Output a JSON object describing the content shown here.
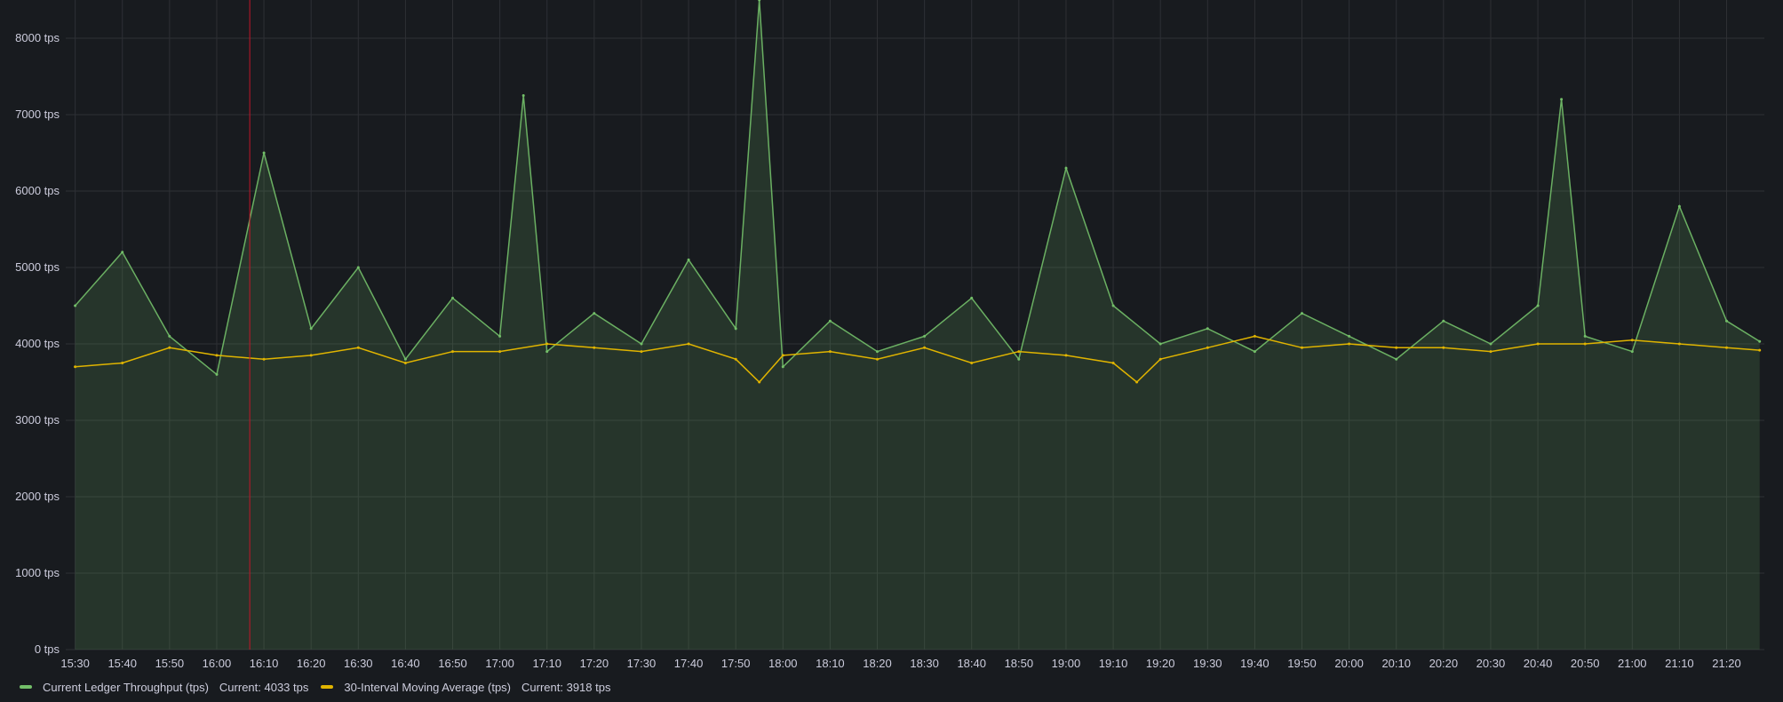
{
  "colors": {
    "background": "#181b1f",
    "grid": "#2e3035",
    "throughput": "#73bf69",
    "moving_average": "#e0b400",
    "annotation": "#c4162a"
  },
  "legend": [
    {
      "name": "Current Ledger Throughput (tps)",
      "current": "Current: 4033 tps",
      "color": "#73bf69"
    },
    {
      "name": "30-Interval Moving Average (tps)",
      "current": "Current: 3918 tps",
      "color": "#e0b400"
    }
  ],
  "chart_data": {
    "type": "line",
    "title": "",
    "xlabel": "",
    "ylabel": "",
    "ylim": [
      0,
      8500
    ],
    "y_ticks": [
      "0 tps",
      "1000 tps",
      "2000 tps",
      "3000 tps",
      "4000 tps",
      "5000 tps",
      "6000 tps",
      "7000 tps",
      "8000 tps"
    ],
    "y_tick_values": [
      0,
      1000,
      2000,
      3000,
      4000,
      5000,
      6000,
      7000,
      8000
    ],
    "x_ticks": [
      "15:30",
      "15:40",
      "15:50",
      "16:00",
      "16:10",
      "16:20",
      "16:30",
      "16:40",
      "16:50",
      "17:00",
      "17:10",
      "17:20",
      "17:30",
      "17:40",
      "17:50",
      "18:00",
      "18:10",
      "18:20",
      "18:30",
      "18:40",
      "18:50",
      "19:00",
      "19:10",
      "19:20",
      "19:30",
      "19:40",
      "19:50",
      "20:00",
      "20:10",
      "20:20",
      "20:30",
      "20:40",
      "20:50",
      "21:00",
      "21:10",
      "21:20"
    ],
    "x_range": [
      "15:28",
      "21:28"
    ],
    "grid": true,
    "legend_position": "bottom-left",
    "annotation_time": "16:07",
    "series": [
      {
        "name": "Current Ledger Throughput (tps)",
        "x": [
          "15:30",
          "15:40",
          "15:50",
          "16:00",
          "16:10",
          "16:20",
          "16:30",
          "16:40",
          "16:50",
          "17:00",
          "17:05",
          "17:10",
          "17:20",
          "17:30",
          "17:40",
          "17:50",
          "17:55",
          "18:00",
          "18:10",
          "18:20",
          "18:30",
          "18:40",
          "18:50",
          "19:00",
          "19:10",
          "19:20",
          "19:30",
          "19:40",
          "19:50",
          "20:00",
          "20:10",
          "20:20",
          "20:30",
          "20:40",
          "20:45",
          "20:50",
          "21:00",
          "21:10",
          "21:20",
          "21:27"
        ],
        "values": [
          4500,
          5200,
          4100,
          3600,
          6500,
          4200,
          5000,
          3800,
          4600,
          4100,
          7250,
          3900,
          4400,
          4000,
          5100,
          4200,
          8500,
          3700,
          4300,
          3900,
          4100,
          4600,
          3800,
          6300,
          4500,
          4000,
          4200,
          3900,
          4400,
          4100,
          3800,
          4300,
          4000,
          4500,
          7200,
          4100,
          3900,
          5800,
          4300,
          4033
        ],
        "color": "#73bf69"
      },
      {
        "name": "30-Interval Moving Average (tps)",
        "x": [
          "15:30",
          "15:40",
          "15:50",
          "16:00",
          "16:10",
          "16:20",
          "16:30",
          "16:40",
          "16:50",
          "17:00",
          "17:10",
          "17:20",
          "17:30",
          "17:40",
          "17:50",
          "17:55",
          "18:00",
          "18:10",
          "18:20",
          "18:30",
          "18:40",
          "18:50",
          "19:00",
          "19:10",
          "19:15",
          "19:20",
          "19:30",
          "19:40",
          "19:50",
          "20:00",
          "20:10",
          "20:20",
          "20:30",
          "20:40",
          "20:50",
          "21:00",
          "21:10",
          "21:20",
          "21:27"
        ],
        "values": [
          3700,
          3750,
          3950,
          3850,
          3800,
          3850,
          3950,
          3750,
          3900,
          3900,
          4000,
          3950,
          3900,
          4000,
          3800,
          3500,
          3850,
          3900,
          3800,
          3950,
          3750,
          3900,
          3850,
          3750,
          3500,
          3800,
          3950,
          4100,
          3950,
          4000,
          3950,
          3950,
          3900,
          4000,
          4000,
          4050,
          4000,
          3950,
          3918
        ],
        "color": "#e0b400"
      }
    ]
  }
}
